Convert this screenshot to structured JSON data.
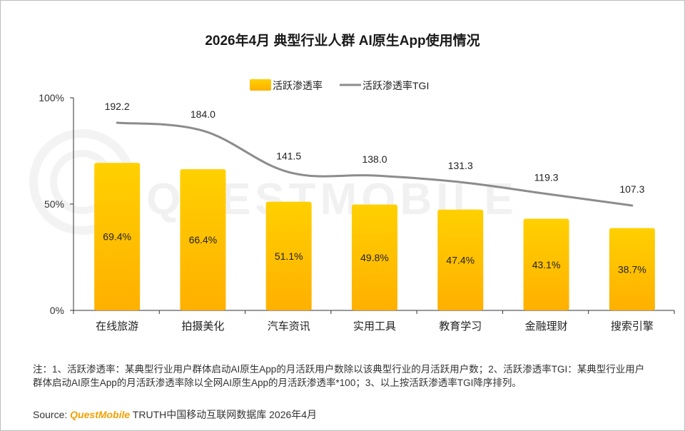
{
  "title": "2026年4月 典型行业人群 AI原生App使用情况",
  "legend": {
    "bar_label": "活跃渗透率",
    "line_label": "活跃渗透率TGI"
  },
  "watermark": "QUESTMOBILE",
  "chart_data": {
    "type": "bar",
    "title": "2026年4月 典型行业人群 AI原生App使用情况",
    "categories": [
      "在线旅游",
      "拍摄美化",
      "汽车资讯",
      "实用工具",
      "教育学习",
      "金融理财",
      "搜索引擎"
    ],
    "series": [
      {
        "name": "活跃渗透率",
        "type": "bar",
        "values": [
          69.4,
          66.4,
          51.1,
          49.8,
          47.4,
          43.1,
          38.7
        ],
        "value_labels": [
          "69.4%",
          "66.4%",
          "51.1%",
          "49.8%",
          "47.4%",
          "43.1%",
          "38.7%"
        ]
      },
      {
        "name": "活跃渗透率TGI",
        "type": "line",
        "values": [
          192.2,
          184.0,
          141.5,
          138.0,
          131.3,
          119.3,
          107.3
        ],
        "value_labels": [
          "192.2",
          "184.0",
          "141.5",
          "138.0",
          "131.3",
          "119.3",
          "107.3"
        ]
      }
    ],
    "y_ticks": [
      "0%",
      "50%",
      "100%"
    ],
    "ylim": [
      0,
      100
    ],
    "legend_position": "top-center",
    "grid": false,
    "colors": {
      "bar_top": "#ffd000",
      "bar_bottom": "#ffb000",
      "line": "#8c8c8c"
    }
  },
  "note": "注：1、活跃渗透率：某典型行业用户群体启动AI原生App的月活跃用户数除以该典型行业的月活跃用户数；2、活跃渗透率TGI：某典型行业用户群体启动AI原生App的月活跃渗透率除以全网AI原生App的月活跃渗透率*100；3、以上按活跃渗透率TGI降序排列。",
  "source": {
    "label": "Source:",
    "brand": "QuestMobile",
    "text": "TRUTH中国移动互联网数据库 2026年4月"
  }
}
